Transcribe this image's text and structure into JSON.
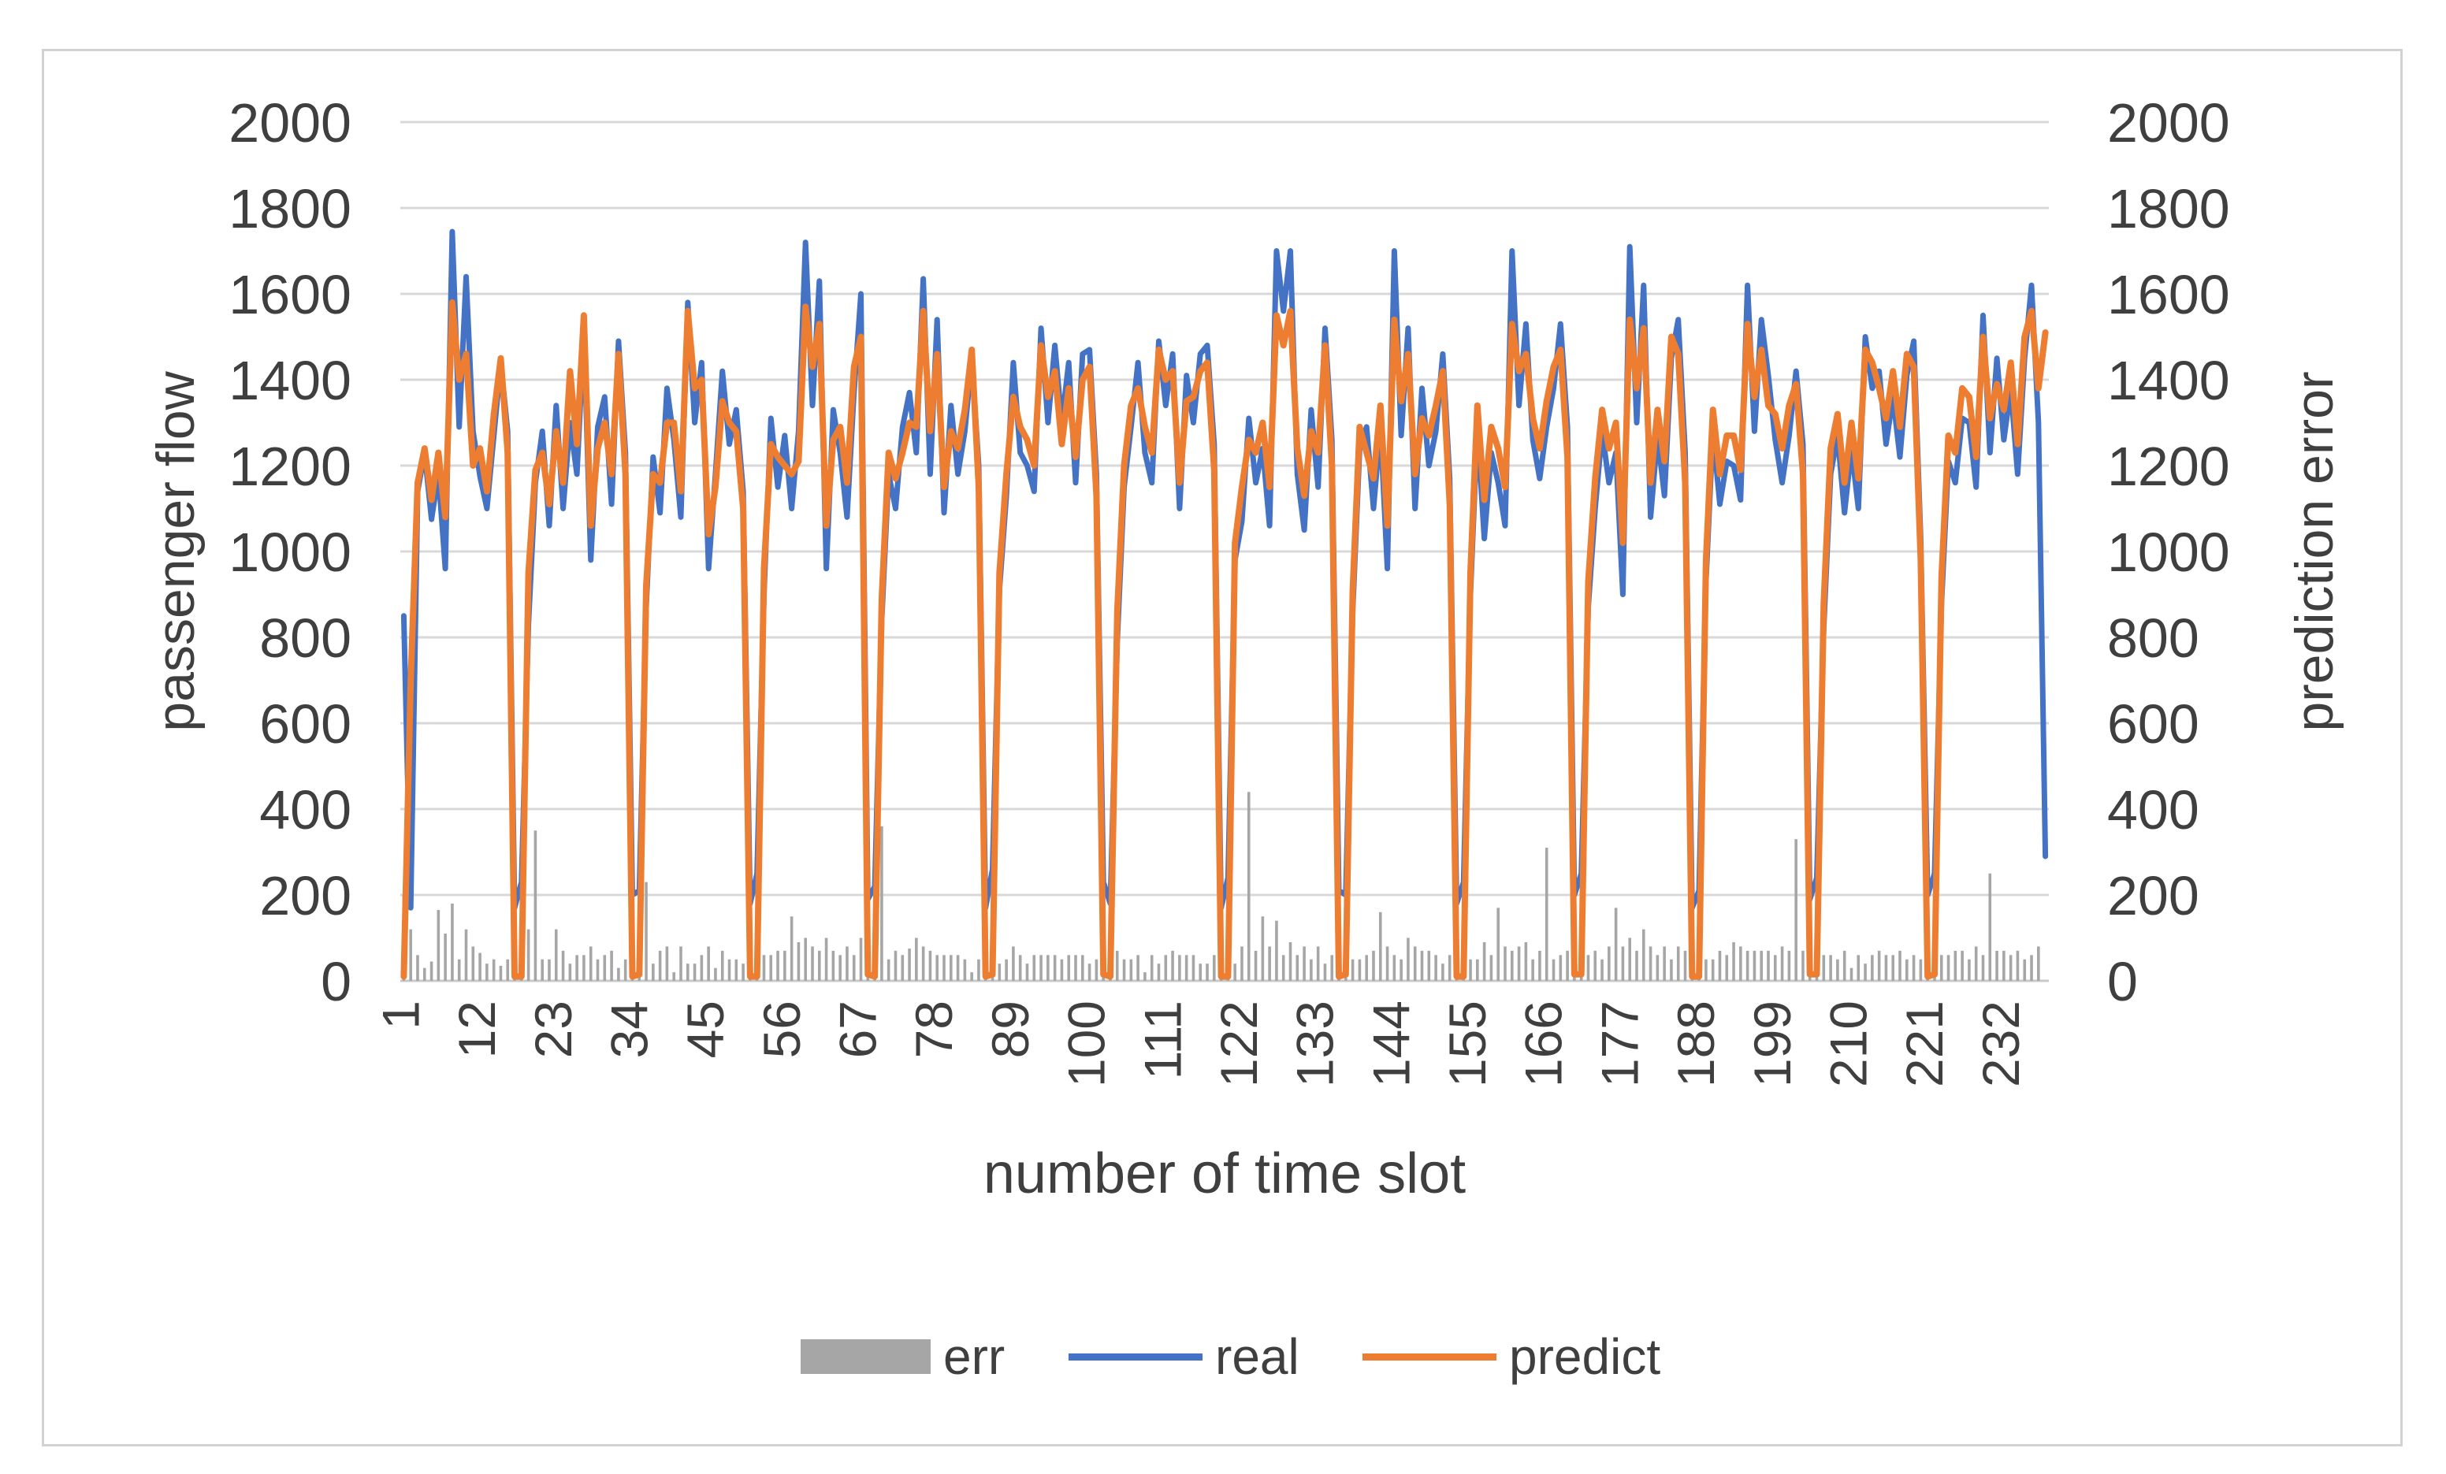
{
  "figure": {
    "background": "#ffffff",
    "border_color": "#d2d2d2"
  },
  "colors": {
    "real": "#4472C4",
    "predict": "#ED7D31",
    "err": "#A6A6A6",
    "gridline": "#D8D8D8",
    "axis_line": "#C9C9C9",
    "text": "#3F3F3F"
  },
  "axes": {
    "left_title": "passenger flow",
    "right_title": "prediction error",
    "x_title": "number of time slot",
    "y_tick_labels": [
      "0",
      "200",
      "400",
      "600",
      "800",
      "1000",
      "1200",
      "1400",
      "1600",
      "1800",
      "2000"
    ],
    "x_tick_labels": [
      "1",
      "12",
      "23",
      "34",
      "45",
      "56",
      "67",
      "78",
      "89",
      "100",
      "111",
      "122",
      "133",
      "144",
      "155",
      "166",
      "177",
      "188",
      "199",
      "210",
      "221",
      "232"
    ]
  },
  "legend": {
    "items": [
      {
        "label": "err",
        "swatch": "bar",
        "color": "#A6A6A6"
      },
      {
        "label": "real",
        "swatch": "line",
        "color": "#4472C4"
      },
      {
        "label": "predict",
        "swatch": "line",
        "color": "#ED7D31"
      }
    ]
  },
  "chart_data": {
    "type": "combo",
    "title": "",
    "xlabel": "number of time slot",
    "ylabel_left": "passenger flow",
    "ylabel_right": "prediction error",
    "ylim": [
      0,
      2000
    ],
    "ytick_step": 200,
    "grid": true,
    "legend_position": "bottom",
    "categories_count": 238,
    "x_tick_interval": 11,
    "x_tick_labels": [
      "1",
      "12",
      "23",
      "34",
      "45",
      "56",
      "67",
      "78",
      "89",
      "100",
      "111",
      "122",
      "133",
      "144",
      "155",
      "166",
      "177",
      "188",
      "199",
      "210",
      "221",
      "232"
    ],
    "series": [
      {
        "name": "err",
        "type": "bar",
        "color": "#A6A6A6",
        "axis": "right",
        "values": [
          200,
          120,
          60,
          30,
          45,
          165,
          110,
          180,
          50,
          120,
          80,
          65,
          40,
          50,
          35,
          50,
          150,
          180,
          120,
          350,
          50,
          50,
          120,
          70,
          40,
          60,
          60,
          80,
          50,
          60,
          70,
          30,
          50,
          170,
          160,
          230,
          40,
          70,
          80,
          20,
          80,
          40,
          40,
          60,
          80,
          30,
          70,
          50,
          50,
          40,
          160,
          220,
          60,
          60,
          70,
          70,
          150,
          90,
          100,
          80,
          70,
          100,
          70,
          60,
          80,
          60,
          100,
          150,
          160,
          360,
          50,
          70,
          60,
          75,
          100,
          80,
          70,
          60,
          60,
          60,
          60,
          50,
          20,
          50,
          170,
          140,
          40,
          50,
          80,
          60,
          40,
          60,
          60,
          60,
          60,
          50,
          60,
          60,
          60,
          40,
          50,
          190,
          150,
          70,
          50,
          50,
          60,
          20,
          60,
          40,
          60,
          70,
          60,
          60,
          60,
          40,
          40,
          60,
          150,
          130,
          40,
          80,
          440,
          70,
          150,
          80,
          140,
          60,
          90,
          60,
          80,
          50,
          80,
          40,
          60,
          180,
          160,
          50,
          50,
          60,
          70,
          160,
          80,
          60,
          50,
          100,
          80,
          70,
          70,
          60,
          40,
          60,
          200,
          150,
          50,
          50,
          90,
          60,
          170,
          80,
          70,
          80,
          90,
          50,
          70,
          310,
          50,
          60,
          70,
          200,
          180,
          60,
          70,
          50,
          80,
          170,
          80,
          100,
          70,
          120,
          80,
          60,
          80,
          50,
          80,
          70,
          180,
          150,
          50,
          50,
          70,
          60,
          90,
          80,
          70,
          70,
          70,
          70,
          60,
          80,
          70,
          330,
          70,
          150,
          160,
          60,
          60,
          50,
          70,
          30,
          60,
          40,
          60,
          70,
          60,
          60,
          70,
          50,
          60,
          50,
          180,
          140,
          60,
          60,
          70,
          70,
          50,
          80,
          60,
          250,
          70,
          70,
          60,
          70,
          50,
          60,
          80,
          0
        ]
      },
      {
        "name": "real",
        "type": "line",
        "color": "#4472C4",
        "axis": "left",
        "values": [
          850,
          170,
          1140,
          1230,
          1075,
          1180,
          960,
          1745,
          1290,
          1640,
          1280,
          1175,
          1100,
          1270,
          1440,
          1280,
          170,
          230,
          830,
          1160,
          1280,
          1060,
          1340,
          1100,
          1300,
          1180,
          1510,
          980,
          1290,
          1360,
          1110,
          1490,
          1230,
          200,
          210,
          870,
          1220,
          1090,
          1380,
          1260,
          1080,
          1580,
          1300,
          1440,
          960,
          1180,
          1420,
          1250,
          1330,
          1140,
          180,
          250,
          900,
          1310,
          1150,
          1270,
          1100,
          1280,
          1720,
          1340,
          1630,
          960,
          1330,
          1230,
          1080,
          1370,
          1600,
          190,
          220,
          840,
          1180,
          1100,
          1290,
          1370,
          1230,
          1635,
          1180,
          1540,
          1090,
          1340,
          1180,
          1280,
          1450,
          1200,
          170,
          260,
          910,
          1130,
          1440,
          1230,
          1200,
          1140,
          1520,
          1300,
          1480,
          1300,
          1440,
          1160,
          1460,
          1470,
          1180,
          230,
          180,
          790,
          1150,
          1290,
          1440,
          1230,
          1160,
          1490,
          1340,
          1460,
          1100,
          1410,
          1300,
          1460,
          1480,
          1250,
          170,
          240,
          980,
          1070,
          1310,
          1160,
          1240,
          1060,
          1700,
          1560,
          1700,
          1180,
          1050,
          1330,
          1150,
          1520,
          1260,
          210,
          200,
          860,
          1240,
          1290,
          1100,
          1290,
          960,
          1700,
          1270,
          1520,
          1100,
          1380,
          1200,
          1280,
          1460,
          1170,
          180,
          230,
          900,
          1290,
          1030,
          1230,
          1160,
          1060,
          1700,
          1340,
          1530,
          1260,
          1170,
          1290,
          1380,
          1530,
          1290,
          200,
          250,
          870,
          1100,
          1280,
          1160,
          1230,
          900,
          1710,
          1300,
          1620,
          1080,
          1270,
          1130,
          1450,
          1540,
          1230,
          170,
          210,
          930,
          1280,
          1110,
          1210,
          1200,
          1120,
          1620,
          1280,
          1540,
          1410,
          1260,
          1160,
          1270,
          1420,
          1250,
          190,
          240,
          820,
          1180,
          1270,
          1090,
          1240,
          1100,
          1500,
          1380,
          1420,
          1250,
          1360,
          1220,
          1410,
          1490,
          1030,
          200,
          250,
          880,
          1210,
          1160,
          1310,
          1300,
          1150,
          1550,
          1230,
          1450,
          1260,
          1380,
          1180,
          1450,
          1620,
          1300,
          290
        ]
      },
      {
        "name": "predict",
        "type": "line",
        "color": "#ED7D31",
        "axis": "left",
        "values": [
          10,
          700,
          1160,
          1240,
          1120,
          1230,
          1080,
          1580,
          1400,
          1460,
          1200,
          1240,
          1140,
          1320,
          1450,
          1230,
          10,
          10,
          950,
          1190,
          1230,
          1110,
          1280,
          1160,
          1420,
          1250,
          1550,
          1060,
          1240,
          1300,
          1180,
          1460,
          1180,
          10,
          15,
          920,
          1180,
          1160,
          1300,
          1300,
          1140,
          1560,
          1380,
          1400,
          1040,
          1150,
          1350,
          1300,
          1280,
          1100,
          10,
          10,
          960,
          1250,
          1220,
          1200,
          1180,
          1210,
          1570,
          1430,
          1530,
          1060,
          1260,
          1290,
          1160,
          1430,
          1500,
          15,
          10,
          890,
          1230,
          1170,
          1230,
          1300,
          1290,
          1560,
          1280,
          1460,
          1150,
          1280,
          1240,
          1330,
          1470,
          1150,
          10,
          15,
          950,
          1180,
          1360,
          1290,
          1260,
          1200,
          1480,
          1360,
          1420,
          1250,
          1380,
          1220,
          1400,
          1430,
          1130,
          15,
          10,
          860,
          1200,
          1340,
          1380,
          1290,
          1230,
          1470,
          1400,
          1420,
          1160,
          1350,
          1360,
          1420,
          1440,
          1190,
          10,
          10,
          1020,
          1150,
          1260,
          1230,
          1300,
          1150,
          1550,
          1480,
          1560,
          1240,
          1130,
          1280,
          1230,
          1480,
          1200,
          10,
          15,
          910,
          1290,
          1230,
          1170,
          1340,
          1060,
          1540,
          1350,
          1460,
          1180,
          1310,
          1270,
          1340,
          1420,
          1110,
          10,
          10,
          950,
          1340,
          1120,
          1290,
          1240,
          1150,
          1530,
          1420,
          1460,
          1310,
          1240,
          1350,
          1430,
          1470,
          1220,
          15,
          15,
          930,
          1170,
          1330,
          1240,
          1300,
          1020,
          1540,
          1380,
          1520,
          1160,
          1330,
          1210,
          1500,
          1460,
          1160,
          10,
          10,
          980,
          1330,
          1180,
          1270,
          1270,
          1190,
          1530,
          1360,
          1470,
          1340,
          1320,
          1240,
          1340,
          1390,
          1180,
          15,
          15,
          880,
          1240,
          1320,
          1160,
          1300,
          1170,
          1470,
          1440,
          1380,
          1310,
          1420,
          1290,
          1460,
          1430,
          980,
          10,
          15,
          940,
          1270,
          1230,
          1380,
          1360,
          1220,
          1500,
          1310,
          1390,
          1330,
          1440,
          1250,
          1500,
          1560,
          1380,
          1510
        ]
      }
    ]
  }
}
